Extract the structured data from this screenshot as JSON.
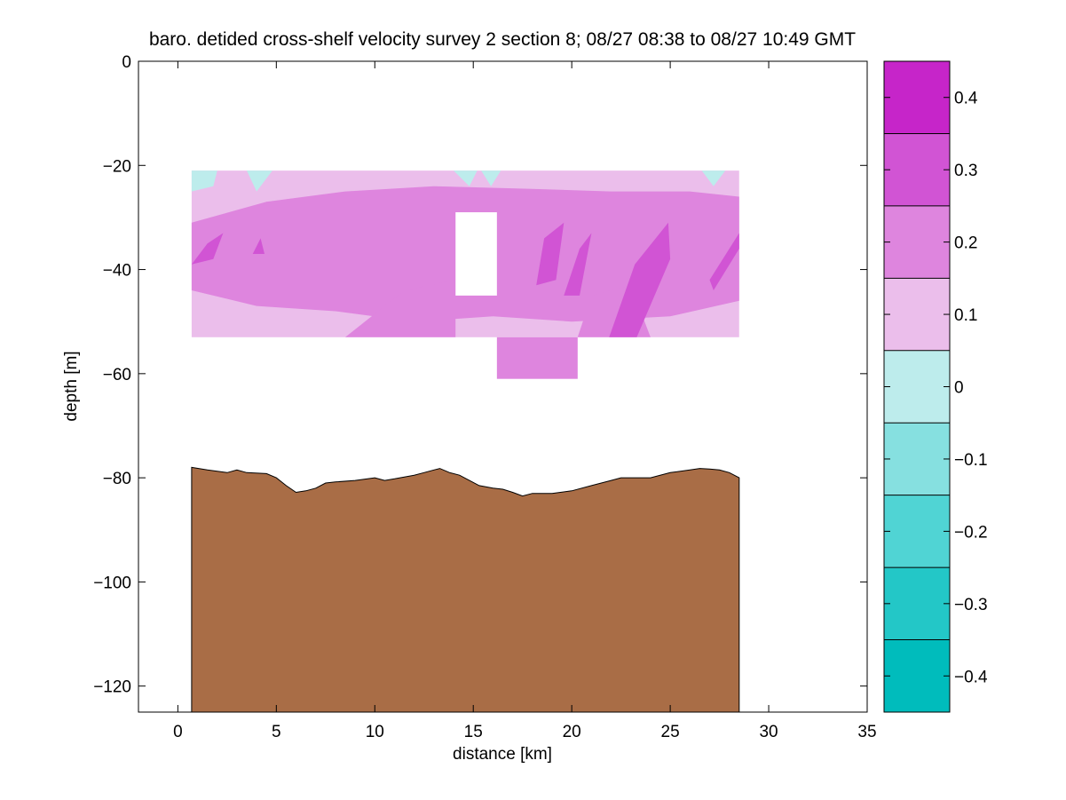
{
  "chart_data": {
    "type": "heatmap",
    "title": "baro. detided cross-shelf velocity survey 2 section 8; 08/27 08:38 to 08/27 10:49 GMT",
    "xlabel": "distance [km]",
    "ylabel": "depth [m]",
    "xlim": [
      -2,
      35
    ],
    "ylim": [
      -125,
      0
    ],
    "xticks": [
      0,
      5,
      10,
      15,
      20,
      25,
      30,
      35
    ],
    "yticks": [
      -120,
      -100,
      -80,
      -60,
      -40,
      -20,
      0
    ],
    "colorbar": {
      "levels": [
        -0.45,
        -0.35,
        -0.25,
        -0.15,
        -0.05,
        0.05,
        0.15,
        0.25,
        0.35,
        0.45
      ],
      "colors": [
        "#00bcbc",
        "#23c7c7",
        "#50d4d4",
        "#86e0e0",
        "#bdecec",
        "#ebbeeb",
        "#de85de",
        "#d154d4",
        "#c625c9",
        "#bc00bc"
      ],
      "ticks": [
        -0.4,
        -0.3,
        -0.2,
        -0.1,
        0,
        0.1,
        0.2,
        0.3,
        0.4
      ]
    },
    "velocity_field": {
      "x_range": [
        0.7,
        28.5
      ],
      "depth_range": [
        -53,
        -21
      ],
      "deep_region": {
        "x": [
          16.2,
          20.3
        ],
        "depth": [
          -61,
          -53
        ]
      },
      "gap": {
        "x": [
          14.1,
          16.2
        ],
        "depth": [
          -45,
          -29
        ]
      },
      "patches": [
        {
          "level": 0.15,
          "poly": [
            [
              0.7,
              -31
            ],
            [
              4.5,
              -27
            ],
            [
              8.5,
              -25
            ],
            [
              13,
              -24
            ],
            [
              18,
              -24.5
            ],
            [
              22,
              -25
            ],
            [
              26,
              -25
            ],
            [
              28.5,
              -26
            ],
            [
              28.5,
              -46
            ],
            [
              25,
              -49
            ],
            [
              20,
              -50
            ],
            [
              16,
              -49
            ],
            [
              12,
              -50
            ],
            [
              8,
              -48
            ],
            [
              4,
              -47
            ],
            [
              0.7,
              -44
            ]
          ]
        },
        {
          "level": 0.15,
          "poly": [
            [
              8.5,
              -53
            ],
            [
              11.5,
              -44
            ],
            [
              14.1,
              -42
            ],
            [
              14.1,
              -53
            ]
          ]
        },
        {
          "level": 0.15,
          "poly": [
            [
              20.3,
              -53
            ],
            [
              21,
              -45
            ],
            [
              23,
              -43
            ],
            [
              24,
              -53
            ]
          ]
        },
        {
          "level": 0.25,
          "poly": [
            [
              0.7,
              -39
            ],
            [
              1.5,
              -35
            ],
            [
              2.3,
              -33
            ],
            [
              1.8,
              -38
            ]
          ]
        },
        {
          "level": 0.25,
          "poly": [
            [
              3.8,
              -37
            ],
            [
              4.2,
              -34
            ],
            [
              4.4,
              -37
            ]
          ]
        },
        {
          "level": 0.25,
          "poly": [
            [
              18.2,
              -43
            ],
            [
              18.6,
              -34
            ],
            [
              19.6,
              -31
            ],
            [
              19.2,
              -42
            ]
          ]
        },
        {
          "level": 0.25,
          "poly": [
            [
              19.6,
              -45
            ],
            [
              20.4,
              -36
            ],
            [
              21.0,
              -33
            ],
            [
              20.4,
              -45
            ]
          ]
        },
        {
          "level": 0.25,
          "poly": [
            [
              21.9,
              -53
            ],
            [
              23.2,
              -39
            ],
            [
              24.9,
              -31
            ],
            [
              25.0,
              -38
            ],
            [
              23.3,
              -53
            ]
          ]
        },
        {
          "level": 0.25,
          "poly": [
            [
              27.2,
              -44
            ],
            [
              28.5,
              -36
            ],
            [
              28.5,
              -33
            ],
            [
              27.0,
              -42
            ]
          ]
        },
        {
          "level": -0.05,
          "poly": [
            [
              0.7,
              -21
            ],
            [
              2.0,
              -21
            ],
            [
              1.8,
              -24
            ],
            [
              0.7,
              -25
            ]
          ]
        },
        {
          "level": -0.05,
          "poly": [
            [
              3.5,
              -21
            ],
            [
              4.8,
              -21
            ],
            [
              4.0,
              -25
            ]
          ]
        },
        {
          "level": -0.05,
          "poly": [
            [
              14.0,
              -21
            ],
            [
              15.2,
              -21
            ],
            [
              14.8,
              -24
            ]
          ]
        },
        {
          "level": -0.05,
          "poly": [
            [
              15.4,
              -21
            ],
            [
              16.4,
              -21
            ],
            [
              15.9,
              -24
            ]
          ]
        },
        {
          "level": -0.05,
          "poly": [
            [
              26.6,
              -21
            ],
            [
              27.8,
              -21
            ],
            [
              27.2,
              -24
            ]
          ]
        }
      ]
    },
    "bathymetry": {
      "color": "#a96d46",
      "x": [
        0.7,
        1.5,
        2.5,
        3.0,
        3.5,
        4.5,
        5.0,
        5.5,
        6.0,
        6.5,
        7.0,
        7.5,
        8.0,
        9.0,
        10.0,
        10.5,
        11.0,
        12.0,
        12.5,
        13.0,
        13.3,
        13.8,
        14.3,
        14.8,
        15.3,
        16.0,
        16.5,
        17.0,
        17.5,
        18.0,
        19.0,
        20.0,
        21.0,
        22.0,
        22.5,
        23.0,
        24.0,
        25.0,
        26.0,
        26.5,
        27.0,
        27.5,
        28.0,
        28.5
      ],
      "depth": [
        -78,
        -78.5,
        -79,
        -78.5,
        -79,
        -79.2,
        -80,
        -81.5,
        -82.8,
        -82.5,
        -82,
        -81,
        -80.8,
        -80.5,
        -80,
        -80.5,
        -80.2,
        -79.5,
        -79,
        -78.5,
        -78.2,
        -79,
        -79.5,
        -80.5,
        -81.5,
        -82,
        -82.2,
        -82.8,
        -83.5,
        -83,
        -83,
        -82.5,
        -81.5,
        -80.5,
        -80,
        -80,
        -80,
        -79,
        -78.5,
        -78.2,
        -78.3,
        -78.5,
        -79,
        -80
      ]
    }
  }
}
